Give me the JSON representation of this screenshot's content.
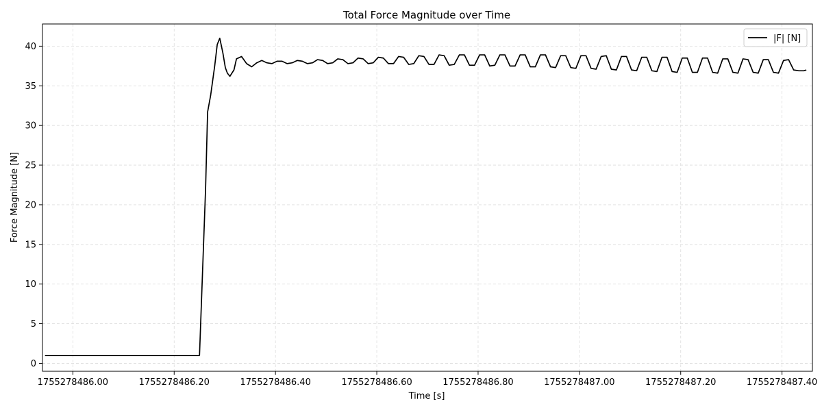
{
  "chart_data": {
    "type": "line",
    "title": "Total Force Magnitude over Time",
    "xlabel": "Time [s]",
    "ylabel": "Force Magnitude [N]",
    "xlim": [
      1755278485.94,
      1755278487.46
    ],
    "ylim": [
      -1.0,
      42.8
    ],
    "x_ticks": [
      1755278486.0,
      1755278486.2,
      1755278486.4,
      1755278486.6,
      1755278486.8,
      1755278487.0,
      1755278487.2,
      1755278487.4
    ],
    "x_tick_labels": [
      "1755278486.00",
      "1755278486.20",
      "1755278486.40",
      "1755278486.60",
      "1755278486.80",
      "1755278487.00",
      "1755278487.20",
      "1755278487.40"
    ],
    "y_ticks": [
      0,
      5,
      10,
      15,
      20,
      25,
      30,
      35,
      40
    ],
    "y_tick_labels": [
      "0",
      "5",
      "10",
      "15",
      "20",
      "25",
      "30",
      "35",
      "40"
    ],
    "grid": true,
    "legend": {
      "placement": "top-right",
      "entries": [
        "|F| [N]"
      ]
    },
    "series": [
      {
        "name": "|F| [N]",
        "color": "#000000",
        "x": [
          1755278485.945,
          1755278486.0,
          1755278486.05,
          1755278486.1,
          1755278486.15,
          1755278486.2,
          1755278486.245,
          1755278486.25,
          1755278486.262,
          1755278486.266,
          1755278486.272,
          1755278486.28,
          1755278486.285,
          1755278486.29,
          1755278486.296,
          1755278486.301,
          1755278486.305,
          1755278486.31,
          1755278486.318,
          1755278486.323,
          1755278486.333,
          1755278486.343,
          1755278486.353,
          1755278486.363,
          1755278486.373,
          1755278486.383,
          1755278486.393,
          1755278486.403,
          1755278486.413,
          1755278486.423,
          1755278486.433,
          1755278486.443,
          1755278486.453,
          1755278486.463,
          1755278486.473,
          1755278486.483,
          1755278486.493,
          1755278486.503,
          1755278486.513,
          1755278486.523,
          1755278486.533,
          1755278486.543,
          1755278486.553,
          1755278486.563,
          1755278486.573,
          1755278486.583,
          1755278486.593,
          1755278486.603,
          1755278486.613,
          1755278486.623,
          1755278486.633,
          1755278486.643,
          1755278486.653,
          1755278486.663,
          1755278486.673,
          1755278486.683,
          1755278486.693,
          1755278486.703,
          1755278486.713,
          1755278486.723,
          1755278486.733,
          1755278486.743,
          1755278486.753,
          1755278486.763,
          1755278486.773,
          1755278486.783,
          1755278486.793,
          1755278486.803,
          1755278486.813,
          1755278486.823,
          1755278486.833,
          1755278486.843,
          1755278486.853,
          1755278486.863,
          1755278486.873,
          1755278486.883,
          1755278486.893,
          1755278486.903,
          1755278486.913,
          1755278486.923,
          1755278486.933,
          1755278486.943,
          1755278486.953,
          1755278486.963,
          1755278486.973,
          1755278486.983,
          1755278486.993,
          1755278487.003,
          1755278487.013,
          1755278487.023,
          1755278487.033,
          1755278487.043,
          1755278487.053,
          1755278487.063,
          1755278487.073,
          1755278487.083,
          1755278487.093,
          1755278487.103,
          1755278487.113,
          1755278487.123,
          1755278487.133,
          1755278487.143,
          1755278487.153,
          1755278487.163,
          1755278487.173,
          1755278487.183,
          1755278487.193,
          1755278487.203,
          1755278487.213,
          1755278487.223,
          1755278487.233,
          1755278487.243,
          1755278487.253,
          1755278487.263,
          1755278487.273,
          1755278487.283,
          1755278487.293,
          1755278487.303,
          1755278487.313,
          1755278487.323,
          1755278487.333,
          1755278487.343,
          1755278487.353,
          1755278487.363,
          1755278487.373,
          1755278487.383,
          1755278487.393,
          1755278487.403,
          1755278487.413,
          1755278487.423,
          1755278487.433,
          1755278487.443,
          1755278487.448
        ],
        "y": [
          1.0,
          1.0,
          1.0,
          1.0,
          1.0,
          1.0,
          1.0,
          1.0,
          22.0,
          31.7,
          33.8,
          37.5,
          40.2,
          41.0,
          39.2,
          37.3,
          36.6,
          36.2,
          37.0,
          38.4,
          38.7,
          37.8,
          37.4,
          37.9,
          38.2,
          37.9,
          37.8,
          38.1,
          38.1,
          37.8,
          37.9,
          38.2,
          38.1,
          37.8,
          37.9,
          38.3,
          38.2,
          37.8,
          37.9,
          38.4,
          38.3,
          37.8,
          37.9,
          38.5,
          38.4,
          37.8,
          37.9,
          38.6,
          38.5,
          37.8,
          37.8,
          38.7,
          38.6,
          37.7,
          37.8,
          38.8,
          38.7,
          37.7,
          37.7,
          38.9,
          38.8,
          37.6,
          37.7,
          38.9,
          38.9,
          37.6,
          37.6,
          38.9,
          38.9,
          37.5,
          37.6,
          38.9,
          38.9,
          37.5,
          37.5,
          38.9,
          38.9,
          37.4,
          37.4,
          38.9,
          38.9,
          37.4,
          37.3,
          38.8,
          38.8,
          37.3,
          37.2,
          38.8,
          38.8,
          37.2,
          37.1,
          38.7,
          38.8,
          37.1,
          37.0,
          38.7,
          38.7,
          37.0,
          36.9,
          38.6,
          38.6,
          36.9,
          36.8,
          38.6,
          38.6,
          36.8,
          36.7,
          38.5,
          38.5,
          36.7,
          36.7,
          38.5,
          38.5,
          36.7,
          36.6,
          38.4,
          38.4,
          36.7,
          36.6,
          38.4,
          38.3,
          36.7,
          36.6,
          38.3,
          38.3,
          36.7,
          36.6,
          38.2,
          38.3,
          37.0,
          36.9,
          36.9,
          37.0
        ]
      }
    ]
  }
}
